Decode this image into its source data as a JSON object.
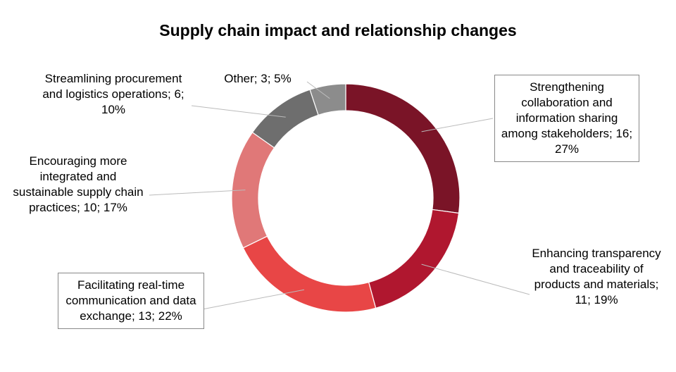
{
  "chart_data": {
    "type": "pie",
    "variant": "donut",
    "title": "Supply chain impact and relationship changes",
    "categories": [
      "Strengthening collaboration and information sharing among stakeholders",
      "Enhancing transparency and traceability of products and materials",
      "Facilitating real-time communication and data exchange",
      "Encouraging more integrated and sustainable supply chain practices",
      "Streamlining procurement and logistics operations",
      "Other"
    ],
    "values": [
      16,
      11,
      13,
      10,
      6,
      3
    ],
    "percents": [
      27,
      19,
      22,
      17,
      10,
      5
    ],
    "labels": [
      "Strengthening collaboration and information sharing among stakeholders; 16; 27%",
      "Enhancing transparency and traceability of products and materials; 11; 19%",
      "Facilitating real-time communication and data exchange; 13; 22%",
      "Encouraging more integrated and sustainable supply chain practices; 10; 17%",
      "Streamlining procurement and logistics operations; 6; 10%",
      "Other; 3; 5%"
    ],
    "colors": [
      "#7a1427",
      "#b0172f",
      "#e84646",
      "#e07878",
      "#6e6e6e",
      "#8c8c8c"
    ],
    "legend": "none"
  }
}
